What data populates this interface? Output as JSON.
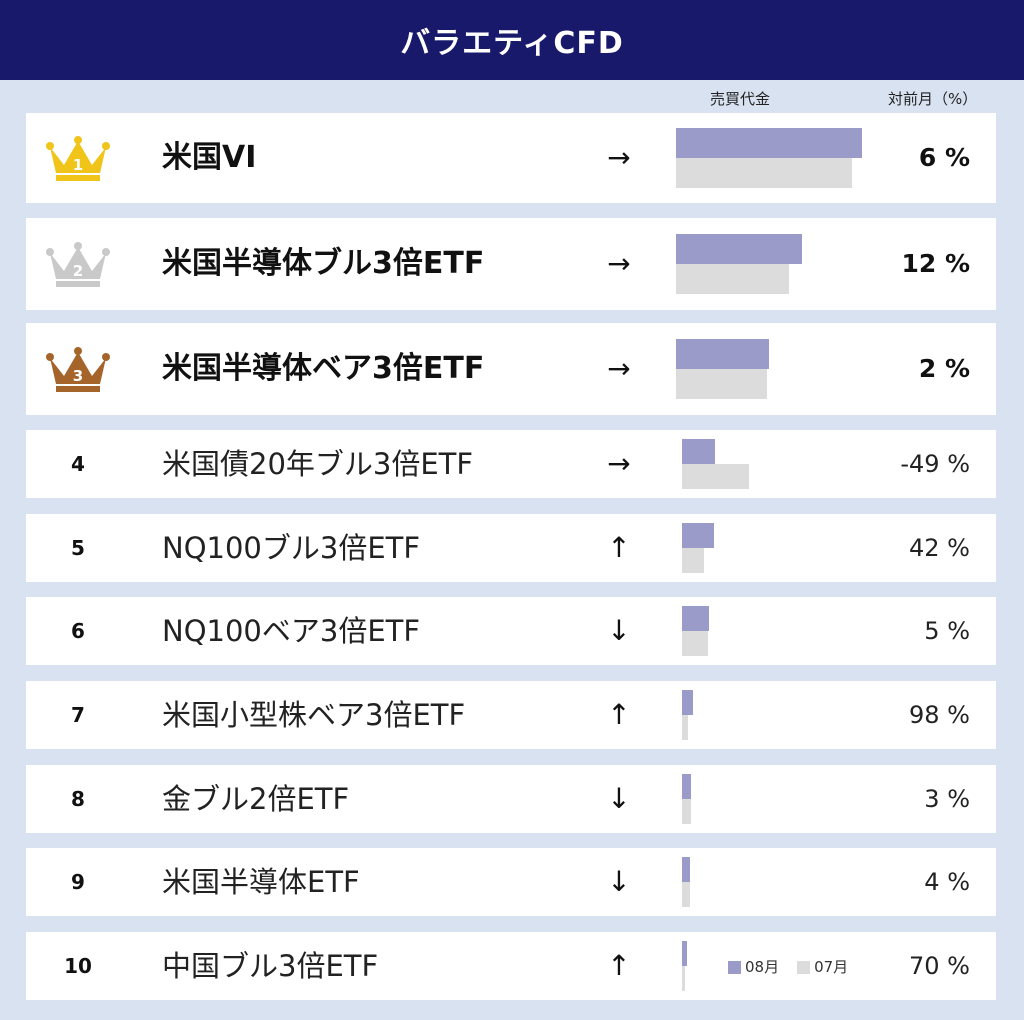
{
  "header": {
    "title": "バラエティCFD"
  },
  "columns": {
    "turnover": "売買代金",
    "change": "対前月（%）"
  },
  "legend": {
    "current": "08月",
    "previous": "07月"
  },
  "colors": {
    "current": "#9b9bc9",
    "previous": "#dcdcdc",
    "gold": "#f0c419",
    "silver": "#c9c9c9",
    "bronze": "#a5652a",
    "header": "#18196a"
  },
  "chart_data": {
    "type": "bar",
    "categories": [
      "米国VI",
      "米国半導体ブル3倍ETF",
      "米国半導体ベア3倍ETF",
      "米国債20年ブル3倍ETF",
      "NQ100ブル3倍ETF",
      "NQ100ベア3倍ETF",
      "米国小型株ベア3倍ETF",
      "金ブル2倍ETF",
      "米国半導体ETF",
      "中国ブル3倍ETF"
    ],
    "series": [
      {
        "name": "08月",
        "values": [
          100,
          68,
          50,
          18,
          17,
          14.5,
          6,
          5,
          4.5,
          2.5
        ]
      },
      {
        "name": "07月",
        "values": [
          94.5,
          61,
          49,
          36,
          12,
          14,
          3,
          5,
          4.5,
          1.5
        ]
      }
    ]
  },
  "rows": [
    {
      "rank": "1",
      "name": "米国VI",
      "arrow": "→",
      "change": "6 %"
    },
    {
      "rank": "2",
      "name": "米国半導体ブル3倍ETF",
      "arrow": "→",
      "change": "12 %"
    },
    {
      "rank": "3",
      "name": "米国半導体ベア3倍ETF",
      "arrow": "→",
      "change": "2 %"
    },
    {
      "rank": "4",
      "name": "米国債20年ブル3倍ETF",
      "arrow": "→",
      "change": "-49 %"
    },
    {
      "rank": "5",
      "name": "NQ100ブル3倍ETF",
      "arrow": "↑",
      "change": "42 %"
    },
    {
      "rank": "6",
      "name": "NQ100ベア3倍ETF",
      "arrow": "↓",
      "change": "5 %"
    },
    {
      "rank": "7",
      "name": "米国小型株ベア3倍ETF",
      "arrow": "↑",
      "change": "98 %"
    },
    {
      "rank": "8",
      "name": "金ブル2倍ETF",
      "arrow": "↓",
      "change": "3 %"
    },
    {
      "rank": "9",
      "name": "米国半導体ETF",
      "arrow": "↓",
      "change": "4 %"
    },
    {
      "rank": "10",
      "name": "中国ブル3倍ETF",
      "arrow": "↑",
      "change": "70 %"
    }
  ]
}
